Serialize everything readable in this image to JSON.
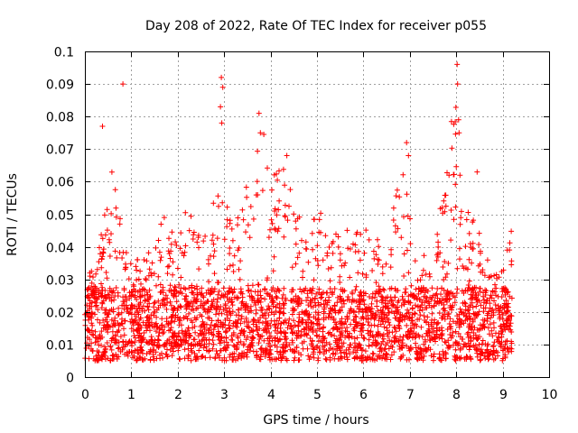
{
  "chart_data": {
    "type": "scatter",
    "title": "Day 208 of 2022, Rate Of TEC Index for receiver p055",
    "xlabel": "GPS time / hours",
    "ylabel": "ROTI / TECUs",
    "xlim": [
      0,
      10
    ],
    "ylim": [
      0,
      0.1
    ],
    "xticks": [
      "0",
      "1",
      "2",
      "3",
      "4",
      "5",
      "6",
      "7",
      "8",
      "9",
      "10"
    ],
    "yticks": [
      "0",
      "0.01",
      "0.02",
      "0.03",
      "0.04",
      "0.05",
      "0.06",
      "0.07",
      "0.08",
      "0.09",
      "0.1"
    ],
    "grid": true,
    "marker": "+",
    "color": "#ff0000",
    "series": [
      {
        "name": "ROTI",
        "x_range": [
          0,
          9.2
        ],
        "baseline_range": [
          0.005,
          0.035
        ],
        "envelope_hours": [
          0.0,
          0.2,
          0.4,
          0.6,
          0.8,
          1.0,
          1.5,
          1.7,
          2.0,
          2.3,
          2.5,
          2.9,
          3.2,
          3.6,
          3.8,
          4.0,
          4.3,
          4.6,
          5.0,
          5.3,
          5.6,
          6.0,
          6.5,
          6.9,
          7.1,
          7.5,
          8.0,
          8.1,
          8.3,
          8.6,
          8.9,
          9.2
        ],
        "envelope_max": [
          0.035,
          0.032,
          0.05,
          0.066,
          0.045,
          0.035,
          0.04,
          0.052,
          0.043,
          0.058,
          0.04,
          0.062,
          0.045,
          0.066,
          0.082,
          0.06,
          0.068,
          0.05,
          0.053,
          0.047,
          0.045,
          0.048,
          0.04,
          0.072,
          0.04,
          0.035,
          0.097,
          0.057,
          0.053,
          0.04,
          0.037,
          0.046
        ],
        "highlights": [
          {
            "x": 0.38,
            "y": 0.077
          },
          {
            "x": 0.82,
            "y": 0.09
          },
          {
            "x": 2.94,
            "y": 0.092
          },
          {
            "x": 2.97,
            "y": 0.089
          },
          {
            "x": 2.92,
            "y": 0.083
          },
          {
            "x": 2.95,
            "y": 0.078
          },
          {
            "x": 3.75,
            "y": 0.081
          },
          {
            "x": 3.78,
            "y": 0.075
          },
          {
            "x": 4.35,
            "y": 0.068
          },
          {
            "x": 6.93,
            "y": 0.072
          },
          {
            "x": 6.97,
            "y": 0.068
          },
          {
            "x": 8.02,
            "y": 0.096
          },
          {
            "x": 8.03,
            "y": 0.09
          },
          {
            "x": 8.05,
            "y": 0.079
          },
          {
            "x": 8.06,
            "y": 0.075
          },
          {
            "x": 8.08,
            "y": 0.062
          },
          {
            "x": 8.45,
            "y": 0.063
          }
        ]
      }
    ]
  }
}
